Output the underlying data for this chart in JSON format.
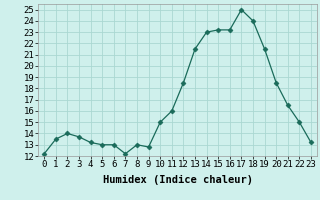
{
  "title": "",
  "xlabel": "Humidex (Indice chaleur)",
  "hours": [
    0,
    1,
    2,
    3,
    4,
    5,
    6,
    7,
    8,
    9,
    10,
    11,
    12,
    13,
    14,
    15,
    16,
    17,
    18,
    19,
    20,
    21,
    22,
    23
  ],
  "values": [
    12.2,
    13.5,
    14.0,
    13.7,
    13.2,
    13.0,
    13.0,
    12.2,
    13.0,
    12.8,
    15.0,
    16.0,
    18.5,
    21.5,
    23.0,
    23.2,
    23.2,
    25.0,
    24.0,
    21.5,
    18.5,
    16.5,
    15.0,
    13.2
  ],
  "line_color": "#1a6b5a",
  "marker": "D",
  "marker_size": 2.5,
  "bg_color": "#cff0ec",
  "grid_color": "#aad8d2",
  "ylim": [
    12,
    25.5
  ],
  "yticks": [
    12,
    13,
    14,
    15,
    16,
    17,
    18,
    19,
    20,
    21,
    22,
    23,
    24,
    25
  ],
  "tick_fontsize": 6.5,
  "xlabel_fontsize": 7.5
}
